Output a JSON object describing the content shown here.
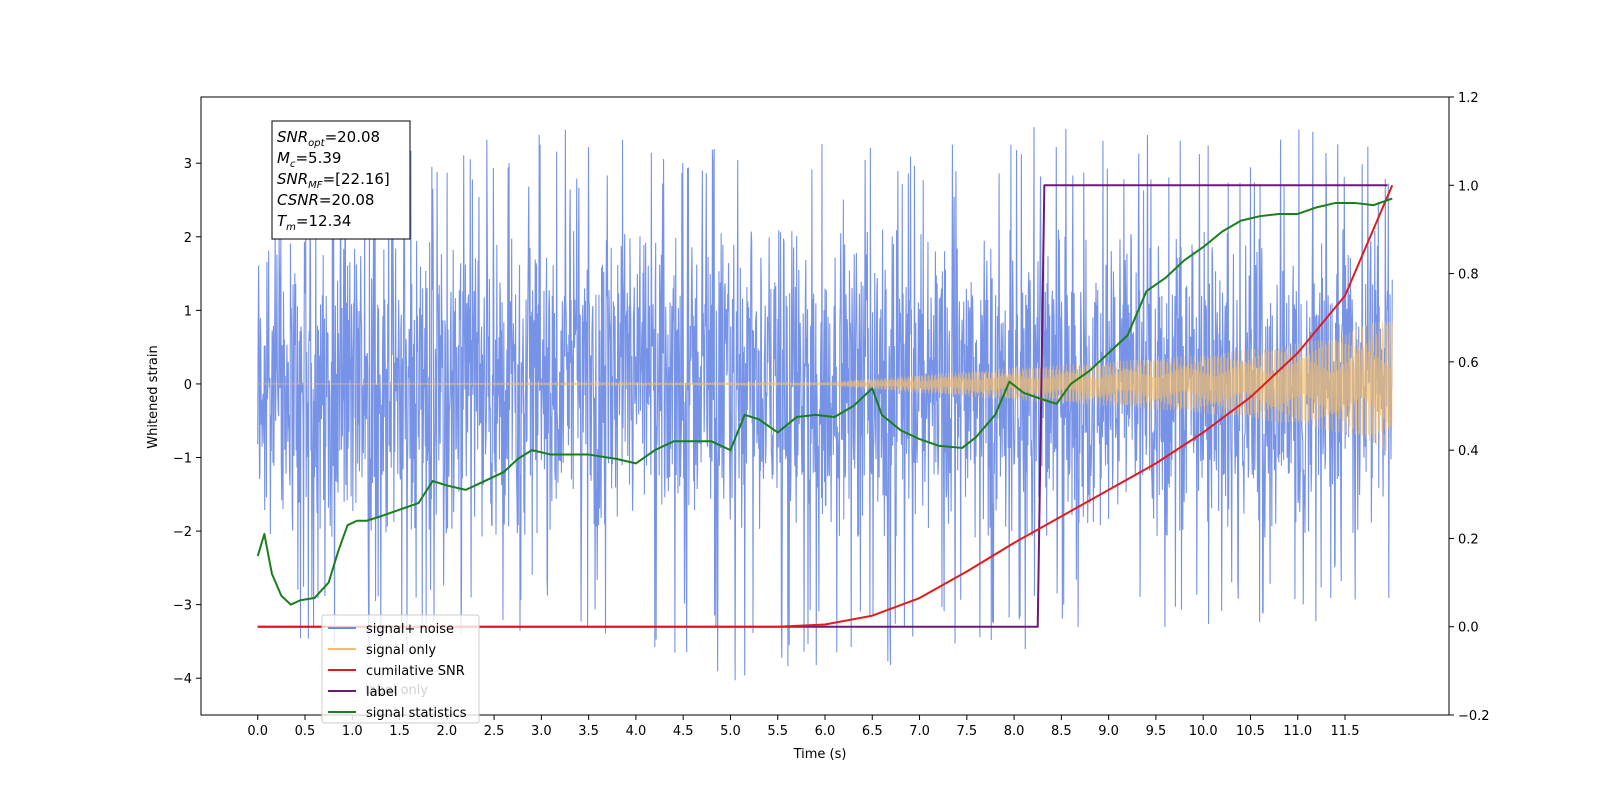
{
  "chart_data": {
    "type": "line",
    "title": "",
    "xlabel": "Time (s)",
    "ylabel": "Whitened strain",
    "y2label": "",
    "xlim": [
      -0.6,
      12.6
    ],
    "ylim": [
      -4.5,
      3.9
    ],
    "y2lim": [
      -0.2,
      1.2
    ],
    "x_ticks": [
      "0.0",
      "0.5",
      "1.0",
      "1.5",
      "2.0",
      "2.5",
      "3.0",
      "3.5",
      "4.0",
      "4.5",
      "5.0",
      "5.5",
      "6.0",
      "6.5",
      "7.0",
      "7.5",
      "8.0",
      "8.5",
      "9.0",
      "9.5",
      "10.0",
      "10.5",
      "11.0",
      "11.5"
    ],
    "y_ticks": [
      "3",
      "2",
      "1",
      "0",
      "−1",
      "−2",
      "−3",
      "−4"
    ],
    "y2_ticks": [
      "1.2",
      "1.0",
      "0.8",
      "0.6",
      "0.4",
      "0.2",
      "0.0",
      "−0.2"
    ],
    "info_box": {
      "lines": [
        {
          "base": "SNR",
          "sub": "opt",
          "value": "=20.08"
        },
        {
          "base": "M",
          "sub": "c",
          "value": "=5.39"
        },
        {
          "base": "SNR",
          "sub": "MF",
          "value": "=[22.16]"
        },
        {
          "base": "CSNR",
          "sub": "",
          "value": "=20.08"
        },
        {
          "base": "T",
          "sub": "m",
          "value": "=12.34"
        }
      ]
    },
    "legend": {
      "placement": "lower-left",
      "entries": [
        {
          "label": "signal+ noise",
          "color": "#6b8ae5"
        },
        {
          "label": "signal only",
          "color": "#f5bd69"
        },
        {
          "label": "cumilative SNR",
          "color": "#e31a1c"
        },
        {
          "label": "label",
          "color": "#6a1b7a"
        },
        {
          "label": "signal statistics",
          "color": "#1a7f1a"
        }
      ],
      "background_text": "label only"
    },
    "series": [
      {
        "name": "signal+ noise",
        "axis": "left",
        "color": "#6b8ae5",
        "x_range": [
          0.0,
          12.0
        ],
        "noise_envelope": {
          "x": [
            0.0,
            1.0,
            3.0,
            5.0,
            7.0,
            8.3,
            9.0,
            10.0,
            11.0,
            12.0
          ],
          "low": [
            -3.1,
            -3.9,
            -3.3,
            -4.1,
            -3.8,
            -3.6,
            -3.2,
            -3.5,
            -3.3,
            -3.0
          ],
          "high": [
            1.9,
            3.1,
            3.5,
            3.3,
            3.3,
            3.6,
            3.4,
            3.5,
            3.5,
            3.2
          ]
        }
      },
      {
        "name": "signal only",
        "axis": "left",
        "color": "#f5bd69",
        "x_range": [
          0.0,
          12.0
        ],
        "amplitude_x": [
          0.0,
          6.0,
          7.0,
          8.0,
          9.0,
          10.0,
          11.0,
          11.5,
          12.0
        ],
        "amplitude": [
          0.0,
          0.02,
          0.12,
          0.22,
          0.3,
          0.4,
          0.55,
          0.68,
          0.95
        ]
      },
      {
        "name": "cumilative SNR",
        "axis": "right",
        "color": "#e31a1c",
        "x": [
          0.0,
          5.5,
          6.0,
          6.5,
          7.0,
          7.5,
          8.0,
          8.5,
          9.0,
          9.5,
          10.0,
          10.5,
          11.0,
          11.5,
          12.0
        ],
        "y": [
          0.0,
          0.0,
          0.005,
          0.025,
          0.065,
          0.125,
          0.19,
          0.25,
          0.31,
          0.37,
          0.44,
          0.52,
          0.62,
          0.75,
          1.0
        ]
      },
      {
        "name": "label",
        "axis": "right",
        "color": "#6a1b7a",
        "x": [
          0.0,
          8.25,
          8.32,
          11.95
        ],
        "y": [
          0.0,
          0.0,
          1.0,
          1.0
        ]
      },
      {
        "name": "signal statistics",
        "axis": "right",
        "color": "#1a7f1a",
        "x": [
          0.0,
          0.07,
          0.15,
          0.25,
          0.35,
          0.45,
          0.6,
          0.75,
          0.85,
          0.95,
          1.05,
          1.15,
          1.3,
          1.5,
          1.7,
          1.85,
          2.0,
          2.2,
          2.4,
          2.6,
          2.75,
          2.9,
          3.1,
          3.3,
          3.5,
          3.8,
          4.0,
          4.2,
          4.4,
          4.6,
          4.8,
          5.0,
          5.15,
          5.3,
          5.5,
          5.7,
          5.9,
          6.1,
          6.3,
          6.5,
          6.6,
          6.8,
          7.0,
          7.2,
          7.45,
          7.6,
          7.8,
          7.95,
          8.1,
          8.3,
          8.45,
          8.6,
          8.8,
          9.0,
          9.2,
          9.4,
          9.6,
          9.8,
          10.0,
          10.2,
          10.4,
          10.6,
          10.8,
          11.0,
          11.2,
          11.4,
          11.6,
          11.8,
          12.0
        ],
        "y": [
          0.16,
          0.21,
          0.12,
          0.07,
          0.05,
          0.06,
          0.065,
          0.1,
          0.17,
          0.23,
          0.24,
          0.24,
          0.25,
          0.265,
          0.28,
          0.33,
          0.32,
          0.31,
          0.33,
          0.35,
          0.38,
          0.4,
          0.39,
          0.39,
          0.39,
          0.38,
          0.37,
          0.4,
          0.42,
          0.42,
          0.42,
          0.4,
          0.48,
          0.47,
          0.44,
          0.475,
          0.48,
          0.475,
          0.5,
          0.54,
          0.48,
          0.445,
          0.425,
          0.41,
          0.405,
          0.43,
          0.48,
          0.555,
          0.53,
          0.515,
          0.505,
          0.55,
          0.58,
          0.62,
          0.66,
          0.76,
          0.79,
          0.83,
          0.86,
          0.895,
          0.92,
          0.93,
          0.935,
          0.935,
          0.95,
          0.96,
          0.96,
          0.955,
          0.97
        ]
      }
    ]
  }
}
